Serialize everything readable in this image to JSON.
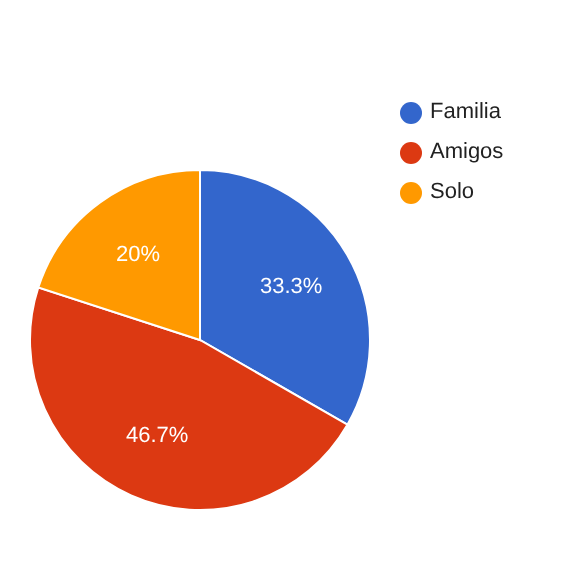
{
  "chart_data": {
    "type": "pie",
    "categories": [
      "Familia",
      "Amigos",
      "Solo"
    ],
    "values": [
      33.3,
      46.7,
      20
    ],
    "colors": [
      "#3366cc",
      "#dc3912",
      "#ff9900"
    ],
    "value_labels": [
      "33.3%",
      "46.7%",
      "20%"
    ],
    "legend": "top right"
  }
}
